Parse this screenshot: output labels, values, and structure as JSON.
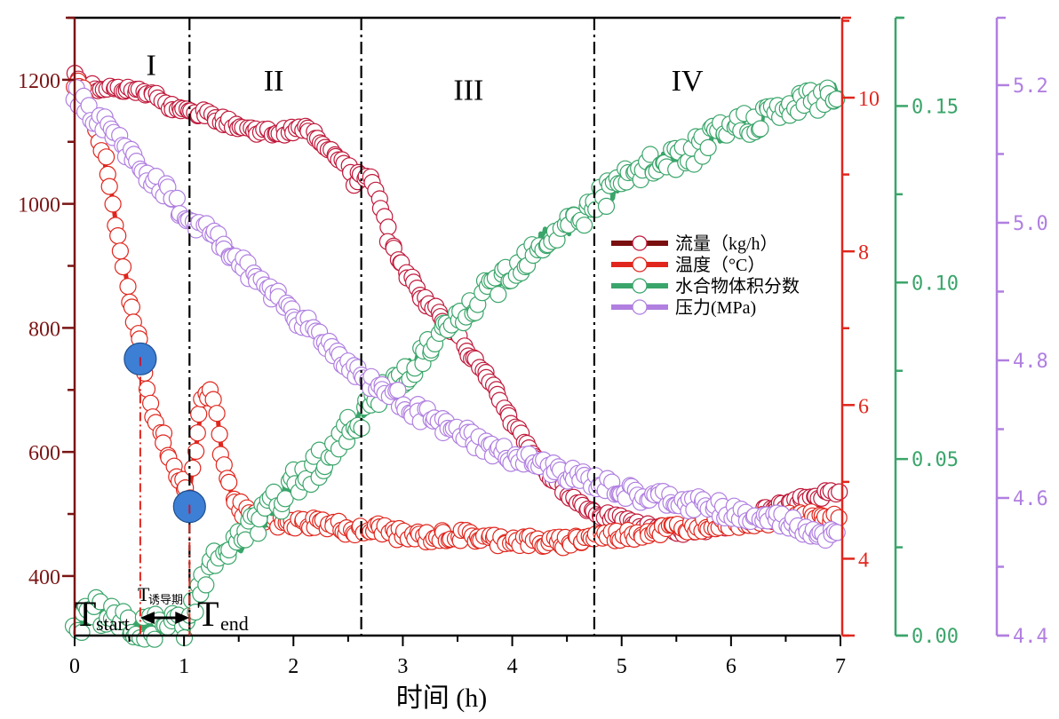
{
  "chart_data": {
    "type": "scatter",
    "title": "",
    "xlabel": "时间 (h)",
    "xlim": [
      0,
      7
    ],
    "xticks": [
      0,
      1,
      2,
      3,
      4,
      5,
      6,
      7
    ],
    "x_minor_step": 0.5,
    "grid": false,
    "legend_position": "center-right",
    "axes": [
      {
        "id": "flow",
        "side": "left",
        "label": "",
        "color": "#7a1414",
        "ylim": [
          304,
          1300
        ],
        "ticks": [
          400,
          600,
          800,
          1000,
          1200
        ],
        "minor_step": 100
      },
      {
        "id": "temp",
        "side": "right",
        "label": "",
        "color": "#e0261d",
        "ylim": [
          3.0,
          11.04
        ],
        "ticks": [
          4,
          6,
          8,
          10
        ],
        "minor_step": 1
      },
      {
        "id": "hydrate",
        "side": "right-offset-1",
        "label": "",
        "color": "#3aa56a",
        "ylim": [
          0.0,
          0.175
        ],
        "ticks": [
          "0.00",
          "0.05",
          "0.10",
          "0.15"
        ],
        "minor_step": 0.025
      },
      {
        "id": "pressure",
        "side": "right-offset-2",
        "label": "",
        "color": "#b07fe0",
        "ylim": [
          4.4,
          5.298
        ],
        "ticks": [
          "4.4",
          "4.6",
          "4.8",
          "5.0",
          "5.2"
        ],
        "minor_step": 0.1
      }
    ],
    "series": [
      {
        "name": "流量（kg/h）",
        "axis": "flow",
        "color": "#c0183a",
        "legend_line_color": "#7a0f0f",
        "x": [
          0.0,
          0.1,
          0.2,
          0.4,
          0.6,
          0.75,
          0.8,
          0.9,
          1.0,
          1.2,
          1.4,
          1.6,
          1.8,
          2.0,
          2.1,
          2.2,
          2.3,
          2.4,
          2.5,
          2.55,
          2.6,
          2.7,
          2.75,
          2.8,
          2.9,
          3.0,
          3.1,
          3.2,
          3.3,
          3.4,
          3.5,
          3.6,
          3.7,
          3.8,
          3.9,
          4.0,
          4.1,
          4.2,
          4.3,
          4.4,
          4.5,
          4.6,
          4.7,
          4.8,
          5.0,
          5.2,
          5.4,
          5.6,
          5.8,
          6.0,
          6.2,
          6.4,
          6.6,
          6.8,
          7.0
        ],
        "y": [
          1205,
          1192,
          1187,
          1185,
          1182,
          1178,
          1162,
          1155,
          1150,
          1145,
          1132,
          1120,
          1115,
          1118,
          1122,
          1110,
          1095,
          1080,
          1060,
          1030,
          1050,
          1040,
          1020,
          990,
          930,
          900,
          870,
          845,
          830,
          810,
          790,
          760,
          740,
          710,
          680,
          650,
          620,
          595,
          570,
          550,
          535,
          520,
          508,
          500,
          490,
          480,
          475,
          472,
          478,
          485,
          500,
          510,
          520,
          530,
          540
        ]
      },
      {
        "name": "温度（°C）",
        "axis": "temp",
        "color": "#e0261d",
        "legend_line_color": "#e0261d",
        "x": [
          0.0,
          0.1,
          0.2,
          0.3,
          0.4,
          0.45,
          0.5,
          0.55,
          0.6,
          0.65,
          0.7,
          0.8,
          0.9,
          1.0,
          1.05,
          1.1,
          1.15,
          1.2,
          1.25,
          1.3,
          1.35,
          1.4,
          1.5,
          1.6,
          1.7,
          1.8,
          2.0,
          2.2,
          2.4,
          2.6,
          2.8,
          3.0,
          3.2,
          3.4,
          3.6,
          3.8,
          4.0,
          4.2,
          4.4,
          4.6,
          4.8,
          5.0,
          5.2,
          5.4,
          5.6,
          5.8,
          6.0,
          6.2,
          6.4,
          6.6,
          6.8,
          7.0
        ],
        "y": [
          10.2,
          10.0,
          9.6,
          9.0,
          8.2,
          7.8,
          7.4,
          7.0,
          6.8,
          6.4,
          6.0,
          5.6,
          5.2,
          4.95,
          4.85,
          5.4,
          5.9,
          6.1,
          6.2,
          5.9,
          5.4,
          5.0,
          4.7,
          4.55,
          4.5,
          4.48,
          4.45,
          4.48,
          4.42,
          4.35,
          4.4,
          4.3,
          4.28,
          4.3,
          4.3,
          4.25,
          4.25,
          4.22,
          4.2,
          4.25,
          4.3,
          4.3,
          4.35,
          4.38,
          4.42,
          4.45,
          4.48,
          4.5,
          4.5,
          4.55,
          4.52,
          4.55
        ]
      },
      {
        "name": "水合物体积分数",
        "axis": "hydrate",
        "color": "#3aa56a",
        "legend_line_color": "#3aa56a",
        "x": [
          0.0,
          0.1,
          0.2,
          0.3,
          0.4,
          0.5,
          0.6,
          0.7,
          0.8,
          0.9,
          1.0,
          1.05,
          1.1,
          1.2,
          1.3,
          1.4,
          1.5,
          1.6,
          1.8,
          2.0,
          2.2,
          2.4,
          2.6,
          2.8,
          3.0,
          3.2,
          3.4,
          3.6,
          3.8,
          4.0,
          4.2,
          4.4,
          4.6,
          4.8,
          5.0,
          5.2,
          5.4,
          5.6,
          5.8,
          6.0,
          6.2,
          6.4,
          6.6,
          6.8,
          7.0
        ],
        "y": [
          0.002,
          0.006,
          0.008,
          0.005,
          0.004,
          0.003,
          0.002,
          0.002,
          0.003,
          0.003,
          0.002,
          0.004,
          0.01,
          0.018,
          0.022,
          0.024,
          0.026,
          0.03,
          0.036,
          0.043,
          0.048,
          0.054,
          0.062,
          0.068,
          0.074,
          0.08,
          0.086,
          0.092,
          0.098,
          0.104,
          0.11,
          0.114,
          0.118,
          0.124,
          0.128,
          0.132,
          0.134,
          0.136,
          0.14,
          0.143,
          0.146,
          0.148,
          0.15,
          0.152,
          0.155
        ]
      },
      {
        "name": "压力(MPa)",
        "axis": "pressure",
        "color": "#b07fe0",
        "legend_line_color": "#b07fe0",
        "x": [
          0.0,
          0.1,
          0.2,
          0.3,
          0.4,
          0.5,
          0.6,
          0.8,
          1.0,
          1.2,
          1.4,
          1.6,
          1.8,
          2.0,
          2.2,
          2.4,
          2.6,
          2.8,
          3.0,
          3.2,
          3.4,
          3.6,
          3.8,
          4.0,
          4.2,
          4.4,
          4.6,
          4.8,
          5.0,
          5.2,
          5.4,
          5.6,
          5.8,
          6.0,
          6.2,
          6.4,
          6.6,
          6.8,
          7.0
        ],
        "y": [
          5.19,
          5.17,
          5.15,
          5.14,
          5.12,
          5.1,
          5.08,
          5.05,
          5.01,
          4.99,
          4.96,
          4.93,
          4.9,
          4.87,
          4.84,
          4.81,
          4.78,
          4.76,
          4.74,
          4.72,
          4.7,
          4.69,
          4.67,
          4.66,
          4.65,
          4.64,
          4.63,
          4.62,
          4.61,
          4.6,
          4.6,
          4.59,
          4.59,
          4.58,
          4.57,
          4.57,
          4.56,
          4.55,
          4.54
        ]
      }
    ],
    "region_lines_x": [
      1.05,
      2.62,
      4.75
    ],
    "regions": [
      {
        "label": "I",
        "x_center": 0.7,
        "y_flow": 1225
      },
      {
        "label": "II",
        "x_center": 1.82,
        "y_flow": 1200
      },
      {
        "label": "III",
        "x_center": 3.6,
        "y_flow": 1185
      },
      {
        "label": "IV",
        "x_center": 5.6,
        "y_flow": 1200
      }
    ],
    "markers": [
      {
        "name": "induction-start-marker",
        "x": 0.6,
        "y_flow": 750,
        "color": "#3d7fd4"
      },
      {
        "name": "induction-end-marker",
        "x": 1.05,
        "y_flow": 512,
        "color": "#3d7fd4"
      }
    ],
    "annotations": {
      "t_start_main": "T",
      "t_start_sub": "start",
      "t_end_main": "T",
      "t_end_sub": "end",
      "induction_main": "T",
      "induction_sub": "诱导期",
      "induction_x_range": [
        0.6,
        1.05
      ]
    }
  }
}
